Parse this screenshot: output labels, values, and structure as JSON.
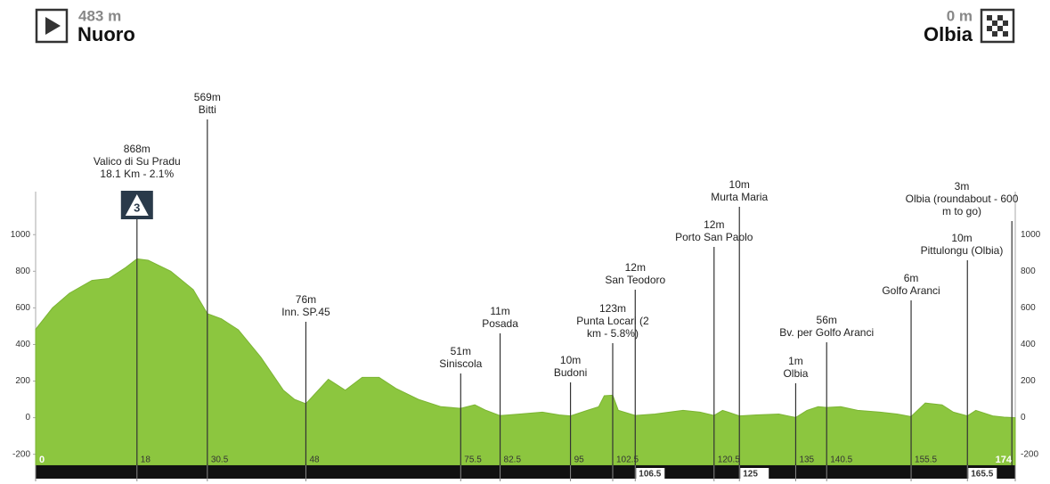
{
  "chart_data": {
    "type": "area",
    "start": {
      "elevation": "483 m",
      "name": "Nuoro"
    },
    "finish": {
      "elevation": "0 m",
      "name": "Olbia"
    },
    "x": [
      0,
      3,
      6,
      10,
      13,
      16,
      18,
      20,
      24,
      28,
      30.5,
      33,
      36,
      40,
      44,
      46,
      48,
      52,
      55,
      58,
      61,
      64,
      68,
      72,
      75.5,
      78,
      80,
      82.5,
      86,
      90,
      93,
      95,
      98,
      100,
      101,
      102.5,
      103.5,
      106.5,
      110,
      115,
      118,
      120.5,
      122,
      123,
      125,
      128,
      132,
      135,
      137,
      139,
      140.5,
      143,
      146,
      150,
      153,
      155.5,
      158,
      161,
      163,
      165.5,
      167,
      170,
      172,
      174
    ],
    "values": [
      483,
      600,
      680,
      750,
      760,
      820,
      868,
      860,
      800,
      700,
      569,
      540,
      480,
      330,
      150,
      100,
      76,
      210,
      150,
      220,
      220,
      160,
      100,
      60,
      51,
      70,
      40,
      11,
      20,
      30,
      15,
      10,
      40,
      60,
      120,
      123,
      40,
      12,
      20,
      40,
      30,
      12,
      40,
      30,
      10,
      15,
      20,
      1,
      40,
      60,
      56,
      60,
      40,
      30,
      20,
      6,
      80,
      70,
      30,
      10,
      40,
      10,
      3,
      0
    ],
    "color": "#8cc63f",
    "xlim": [
      0,
      174
    ],
    "ylim": [
      -260,
      1235
    ],
    "yticks": [
      -200,
      0,
      200,
      400,
      600,
      800,
      1000
    ],
    "xticks": [
      0,
      18,
      30.5,
      48,
      75.5,
      82.5,
      95,
      102.5,
      106.5,
      120.5,
      125,
      135,
      140.5,
      155.5,
      165.5,
      174
    ],
    "waypoints": [
      {
        "x": 18,
        "lines": [
          "868m",
          "Valico di Su Pradu",
          "18.1 Km - 2.1%"
        ],
        "category": "3"
      },
      {
        "x": 30.5,
        "lines": [
          "569m",
          "Bitti"
        ]
      },
      {
        "x": 48,
        "lines": [
          "76m",
          "Inn. SP.45"
        ]
      },
      {
        "x": 75.5,
        "lines": [
          "51m",
          "Siniscola"
        ]
      },
      {
        "x": 82.5,
        "lines": [
          "11m",
          "Posada"
        ]
      },
      {
        "x": 95,
        "lines": [
          "10m",
          "Budoni"
        ]
      },
      {
        "x": 102.5,
        "lines": [
          "123m",
          "Punta Locari (2",
          "km - 5.8%)"
        ]
      },
      {
        "x": 106.5,
        "lines": [
          "12m",
          "San Teodoro"
        ]
      },
      {
        "x": 120.5,
        "lines": [
          "12m",
          "Porto San Paolo"
        ]
      },
      {
        "x": 125,
        "lines": [
          "10m",
          "Murta Maria"
        ]
      },
      {
        "x": 135,
        "lines": [
          "1m",
          "Olbia"
        ]
      },
      {
        "x": 140.5,
        "lines": [
          "56m",
          "Bv. per Golfo Aranci"
        ]
      },
      {
        "x": 155.5,
        "lines": [
          "6m",
          "Golfo Aranci"
        ]
      },
      {
        "x": 165.5,
        "lines": [
          "10m",
          "Pittulongu (Olbia)"
        ]
      },
      {
        "x": 173.4,
        "lines": [
          "3m",
          "Olbia (roundabout - 600",
          "m to go)"
        ]
      }
    ]
  }
}
